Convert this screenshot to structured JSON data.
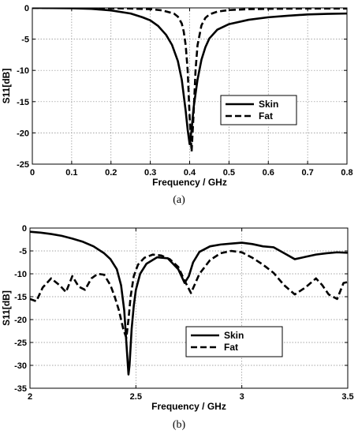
{
  "chart_data": [
    {
      "type": "line",
      "caption": "(a)",
      "xlabel": "Frequency / GHz",
      "ylabel": "S11[dB]",
      "xlim": [
        0,
        0.8
      ],
      "ylim": [
        -25,
        0
      ],
      "xticks": [
        0,
        0.1,
        0.2,
        0.3,
        0.4,
        0.5,
        0.6,
        0.7,
        0.8
      ],
      "xtick_labels": [
        "0",
        "0.1",
        "0.2",
        "0.3",
        "0.4",
        "0.5",
        "0.6",
        "0.7",
        "0.8"
      ],
      "yticks": [
        0,
        -5,
        -10,
        -15,
        -20,
        -25
      ],
      "ytick_labels": [
        "0",
        "-5",
        "-10",
        "-15",
        "-20",
        "-25"
      ],
      "grid": true,
      "legend": "right",
      "series": [
        {
          "name": "Skin",
          "style": "solid",
          "x": [
            0,
            0.1,
            0.15,
            0.2,
            0.25,
            0.28,
            0.3,
            0.32,
            0.34,
            0.355,
            0.37,
            0.38,
            0.39,
            0.395,
            0.4,
            0.405,
            0.41,
            0.42,
            0.43,
            0.44,
            0.45,
            0.47,
            0.5,
            0.55,
            0.6,
            0.65,
            0.7,
            0.75,
            0.8
          ],
          "y": [
            0,
            -0.05,
            -0.15,
            -0.4,
            -0.9,
            -1.5,
            -2.0,
            -2.9,
            -4.3,
            -5.9,
            -8.5,
            -11.5,
            -16.5,
            -19.5,
            -21.8,
            -19.5,
            -16.0,
            -11.5,
            -8.3,
            -6.3,
            -4.9,
            -3.5,
            -2.6,
            -1.9,
            -1.5,
            -1.25,
            -1.05,
            -0.95,
            -0.9
          ]
        },
        {
          "name": "Fat",
          "style": "dashed",
          "x": [
            0,
            0.1,
            0.2,
            0.25,
            0.3,
            0.33,
            0.36,
            0.37,
            0.38,
            0.385,
            0.39,
            0.395,
            0.4,
            0.405,
            0.41,
            0.415,
            0.42,
            0.43,
            0.44,
            0.45,
            0.47,
            0.5,
            0.55,
            0.6,
            0.7,
            0.8
          ],
          "y": [
            0,
            0,
            -0.05,
            -0.1,
            -0.2,
            -0.4,
            -0.9,
            -1.4,
            -2.5,
            -3.8,
            -6.0,
            -10.0,
            -17.5,
            -23.0,
            -17.0,
            -10.0,
            -6.0,
            -2.8,
            -1.6,
            -1.05,
            -0.6,
            -0.35,
            -0.2,
            -0.15,
            -0.1,
            -0.1
          ]
        }
      ]
    },
    {
      "type": "line",
      "caption": "(b)",
      "xlabel": "Frequency / GHz",
      "ylabel": "S11[dB]",
      "xlim": [
        2,
        3.5
      ],
      "ylim": [
        -35,
        0
      ],
      "xticks": [
        2,
        2.5,
        3,
        3.5
      ],
      "xtick_labels": [
        "2",
        "2.5",
        "3",
        "3.5"
      ],
      "yticks": [
        0,
        -5,
        -10,
        -15,
        -20,
        -25,
        -30,
        -35
      ],
      "ytick_labels": [
        "0",
        "-5",
        "-10",
        "-15",
        "-20",
        "-25",
        "-30",
        "-35"
      ],
      "grid": true,
      "legend": "bottom-right",
      "series": [
        {
          "name": "Skin",
          "style": "solid",
          "x": [
            2.0,
            2.05,
            2.1,
            2.15,
            2.2,
            2.25,
            2.3,
            2.35,
            2.38,
            2.41,
            2.43,
            2.445,
            2.455,
            2.465,
            2.47,
            2.48,
            2.49,
            2.5,
            2.52,
            2.55,
            2.6,
            2.65,
            2.7,
            2.73,
            2.75,
            2.77,
            2.8,
            2.85,
            2.9,
            2.95,
            3.0,
            3.05,
            3.1,
            3.15,
            3.2,
            3.25,
            3.3,
            3.35,
            3.4,
            3.45,
            3.5
          ],
          "y": [
            -0.8,
            -1.0,
            -1.3,
            -1.7,
            -2.3,
            -3.0,
            -4.0,
            -5.5,
            -6.8,
            -9.0,
            -12.5,
            -18.0,
            -25.0,
            -32.0,
            -30.0,
            -22.0,
            -17.0,
            -13.5,
            -10.0,
            -7.8,
            -6.4,
            -6.6,
            -9.0,
            -12.0,
            -10.5,
            -7.5,
            -5.2,
            -4.0,
            -3.6,
            -3.4,
            -3.2,
            -3.5,
            -4.0,
            -4.2,
            -5.5,
            -6.8,
            -6.3,
            -5.8,
            -5.5,
            -5.3,
            -5.4
          ]
        },
        {
          "name": "Fat",
          "style": "dashed",
          "x": [
            2.0,
            2.03,
            2.06,
            2.1,
            2.14,
            2.17,
            2.2,
            2.23,
            2.26,
            2.29,
            2.32,
            2.35,
            2.38,
            2.4,
            2.42,
            2.44,
            2.455,
            2.465,
            2.475,
            2.49,
            2.51,
            2.54,
            2.58,
            2.62,
            2.66,
            2.7,
            2.73,
            2.76,
            2.8,
            2.85,
            2.9,
            2.95,
            3.0,
            3.05,
            3.1,
            3.15,
            3.2,
            3.25,
            3.3,
            3.35,
            3.38,
            3.41,
            3.45,
            3.48,
            3.5
          ],
          "y": [
            -15.5,
            -16.0,
            -13.0,
            -11.0,
            -12.5,
            -14.0,
            -10.5,
            -12.8,
            -13.5,
            -11.0,
            -10.0,
            -10.2,
            -12.5,
            -15.0,
            -18.0,
            -22.0,
            -24.0,
            -20.0,
            -15.0,
            -10.5,
            -8.0,
            -6.5,
            -5.8,
            -6.0,
            -6.8,
            -8.5,
            -11.5,
            -14.2,
            -10.0,
            -7.0,
            -5.5,
            -5.0,
            -5.3,
            -6.5,
            -8.0,
            -9.8,
            -12.5,
            -14.5,
            -13.0,
            -11.0,
            -12.5,
            -14.5,
            -15.5,
            -12.0,
            -11.8
          ]
        }
      ]
    }
  ]
}
